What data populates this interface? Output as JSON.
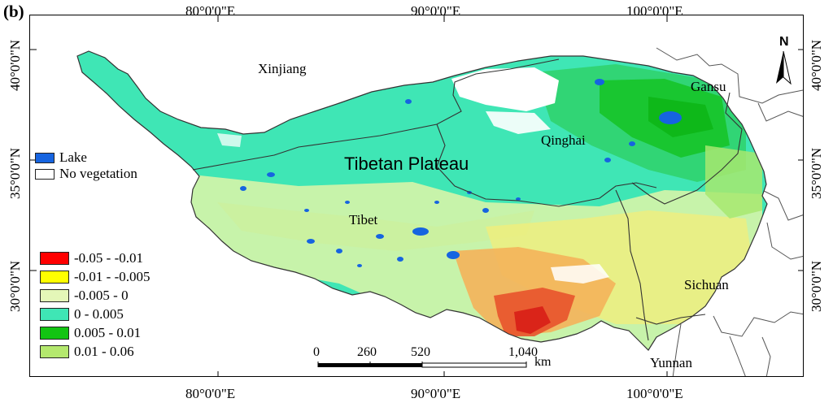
{
  "panel_label": "(b)",
  "longitude_labels": [
    "80°0'0\"E",
    "90°0'0\"E",
    "100°0'0\"E"
  ],
  "latitude_labels": [
    "40°0'0\"N",
    "35°0'0\"N",
    "30°0'0\"N"
  ],
  "regions": [
    "Xinjiang",
    "Qinghai",
    "Gansu",
    "Tibet",
    "Sichuan",
    "Yunnan"
  ],
  "plateau_label": "Tibetan Plateau",
  "north_label": "N",
  "top_legend": [
    "Lake",
    "No vegetation"
  ],
  "trend_legend": [
    {
      "label": "-0.05 - -0.01",
      "color": "#ff0000"
    },
    {
      "label": "-0.01 - -0.005",
      "color": "#ffff00"
    },
    {
      "label": "-0.005 - 0",
      "color": "#e4f7b8"
    },
    {
      "label": "0 - 0.005",
      "color": "#3fe6b5"
    },
    {
      "label": "0.005 - 0.01",
      "color": "#12c412"
    },
    {
      "label": "0.01 - 0.06",
      "color": "#b4e86e"
    }
  ],
  "scale_bar": {
    "ticks": [
      "0",
      "260",
      "520",
      "1,040"
    ],
    "unit": "km"
  }
}
